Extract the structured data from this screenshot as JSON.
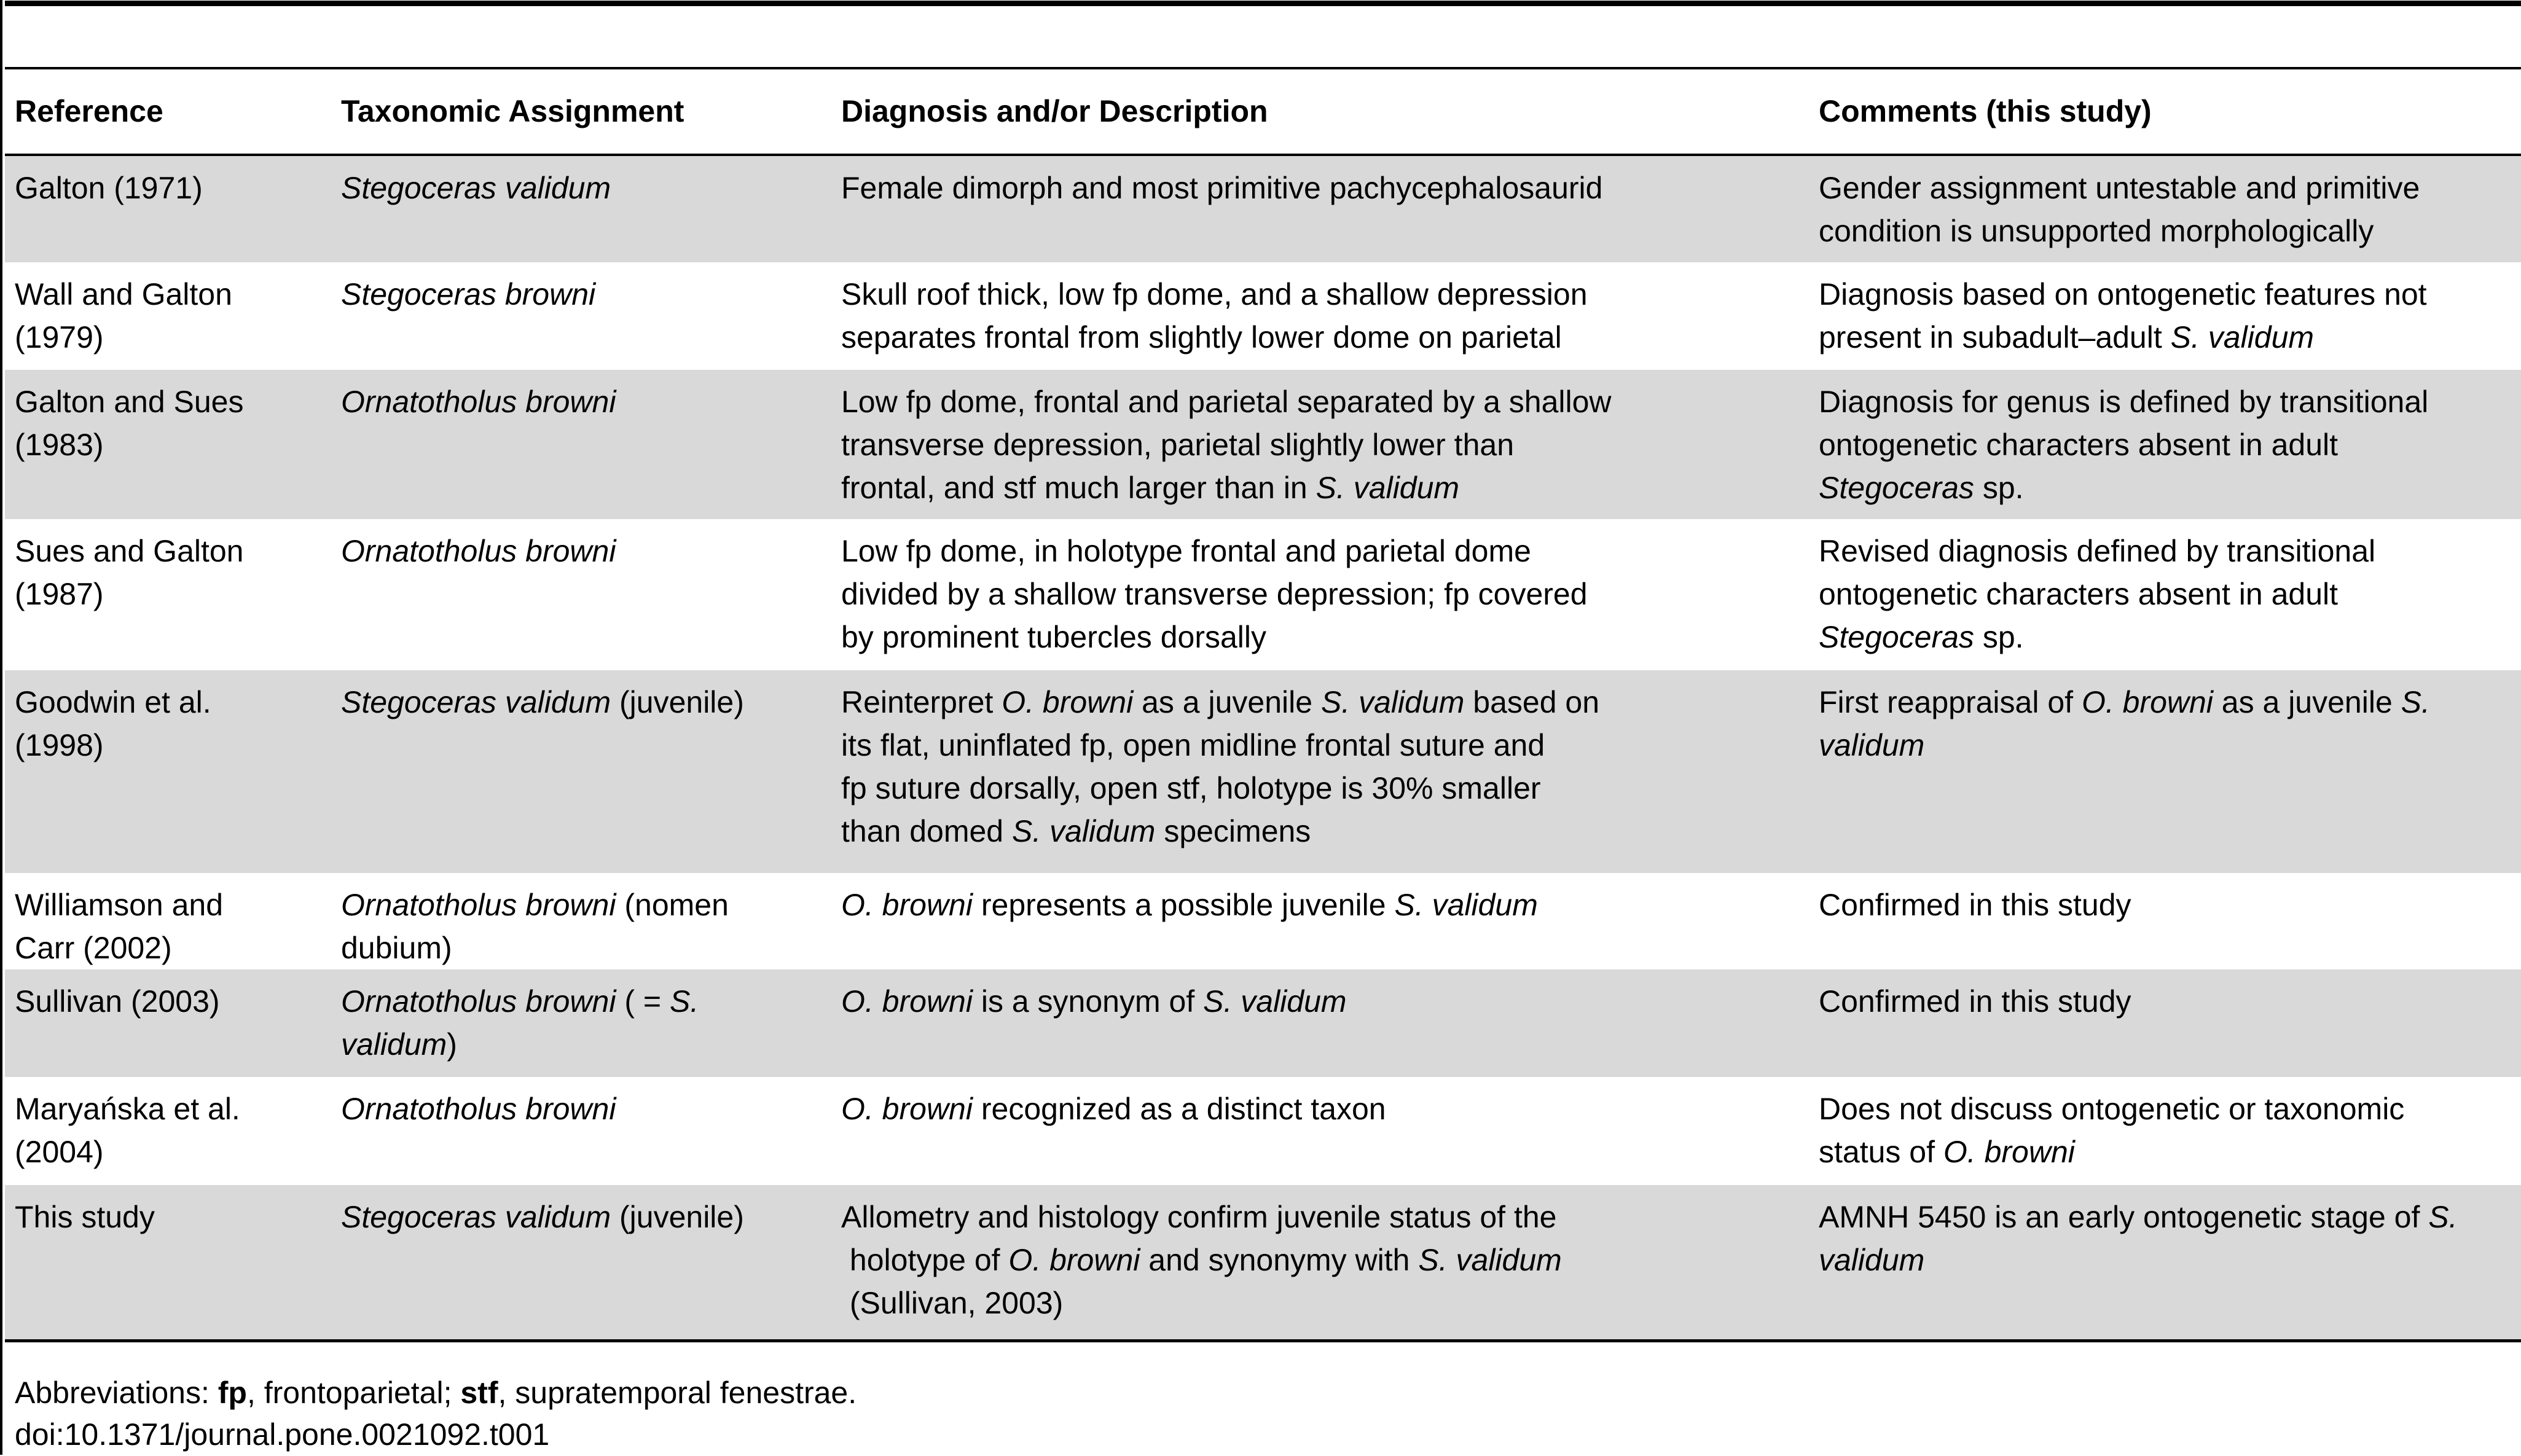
{
  "table": {
    "headers": [
      "Reference",
      "Taxonomic Assignment",
      "Diagnosis and/or Description",
      "Comments (this study)"
    ],
    "shade_color": "#d9d9d9",
    "rows": [
      {
        "cells": [
          {
            "lines": [
              [
                {
                  "t": "Galton (1971)"
                }
              ]
            ]
          },
          {
            "lines": [
              [
                {
                  "t": "Stegoceras validum",
                  "i": true
                }
              ]
            ]
          },
          {
            "lines": [
              [
                {
                  "t": "Female dimorph and most primitive pachycephalosaurid"
                }
              ]
            ]
          },
          {
            "lines": [
              [
                {
                  "t": "Gender assignment untestable and primitive"
                }
              ],
              [
                {
                  "t": "condition is unsupported morphologically"
                }
              ]
            ]
          }
        ]
      },
      {
        "cells": [
          {
            "lines": [
              [
                {
                  "t": "Wall and Galton"
                }
              ],
              [
                {
                  "t": "(1979)"
                }
              ]
            ]
          },
          {
            "lines": [
              [
                {
                  "t": "Stegoceras browni",
                  "i": true
                }
              ]
            ]
          },
          {
            "lines": [
              [
                {
                  "t": "Skull roof thick, low fp dome, and a shallow depression"
                }
              ],
              [
                {
                  "t": "separates frontal from slightly lower dome on parietal"
                }
              ]
            ]
          },
          {
            "lines": [
              [
                {
                  "t": "Diagnosis based on ontogenetic features not"
                }
              ],
              [
                {
                  "t": "present in subadult–adult "
                },
                {
                  "t": "S. validum",
                  "i": true
                }
              ]
            ]
          }
        ]
      },
      {
        "cells": [
          {
            "lines": [
              [
                {
                  "t": "Galton and Sues"
                }
              ],
              [
                {
                  "t": "(1983)"
                }
              ]
            ]
          },
          {
            "lines": [
              [
                {
                  "t": "Ornatotholus browni",
                  "i": true
                }
              ]
            ]
          },
          {
            "lines": [
              [
                {
                  "t": "Low fp dome, frontal and parietal separated by a shallow"
                }
              ],
              [
                {
                  "t": "transverse depression, parietal slightly lower than"
                }
              ],
              [
                {
                  "t": "frontal, and stf much larger than in "
                },
                {
                  "t": "S. validum",
                  "i": true
                }
              ]
            ]
          },
          {
            "lines": [
              [
                {
                  "t": "Diagnosis for genus is defined by transitional"
                }
              ],
              [
                {
                  "t": "ontogenetic characters absent in adult"
                }
              ],
              [
                {
                  "t": "Stegoceras",
                  "i": true
                },
                {
                  "t": " sp."
                }
              ]
            ]
          }
        ]
      },
      {
        "cells": [
          {
            "lines": [
              [
                {
                  "t": "Sues and Galton"
                }
              ],
              [
                {
                  "t": "(1987)"
                }
              ]
            ]
          },
          {
            "lines": [
              [
                {
                  "t": "Ornatotholus browni",
                  "i": true
                }
              ]
            ]
          },
          {
            "lines": [
              [
                {
                  "t": "Low fp dome, in holotype frontal and parietal dome"
                }
              ],
              [
                {
                  "t": "divided by a shallow transverse depression; fp covered"
                }
              ],
              [
                {
                  "t": "by prominent tubercles dorsally"
                }
              ]
            ]
          },
          {
            "lines": [
              [
                {
                  "t": "Revised diagnosis defined by transitional"
                }
              ],
              [
                {
                  "t": "ontogenetic characters absent in adult"
                }
              ],
              [
                {
                  "t": "Stegoceras",
                  "i": true
                },
                {
                  "t": " sp."
                }
              ]
            ]
          }
        ]
      },
      {
        "cells": [
          {
            "lines": [
              [
                {
                  "t": "Goodwin et al."
                }
              ],
              [
                {
                  "t": "(1998)"
                }
              ]
            ]
          },
          {
            "lines": [
              [
                {
                  "t": "Stegoceras validum",
                  "i": true
                },
                {
                  "t": " (juvenile)"
                }
              ]
            ]
          },
          {
            "lines": [
              [
                {
                  "t": "Reinterpret "
                },
                {
                  "t": "O. browni",
                  "i": true
                },
                {
                  "t": " as a juvenile "
                },
                {
                  "t": "S. validum",
                  "i": true
                },
                {
                  "t": " based on"
                }
              ],
              [
                {
                  "t": "its flat, uninflated fp, open midline frontal suture and"
                }
              ],
              [
                {
                  "t": "fp suture dorsally, open stf, holotype is 30% smaller"
                }
              ],
              [
                {
                  "t": "than domed "
                },
                {
                  "t": "S. validum",
                  "i": true
                },
                {
                  "t": " specimens"
                }
              ]
            ]
          },
          {
            "lines": [
              [
                {
                  "t": "First reappraisal of "
                },
                {
                  "t": "O. browni",
                  "i": true
                },
                {
                  "t": " as a juvenile "
                },
                {
                  "t": "S.",
                  "i": true
                }
              ],
              [
                {
                  "t": "validum",
                  "i": true
                }
              ]
            ]
          }
        ]
      },
      {
        "cells": [
          {
            "lines": [
              [
                {
                  "t": "Williamson and"
                }
              ],
              [
                {
                  "t": "Carr (2002)"
                }
              ]
            ]
          },
          {
            "lines": [
              [
                {
                  "t": "Ornatotholus browni",
                  "i": true
                },
                {
                  "t": " (nomen"
                }
              ],
              [
                {
                  "t": "dubium)"
                }
              ]
            ]
          },
          {
            "lines": [
              [
                {
                  "t": "O. browni",
                  "i": true
                },
                {
                  "t": " represents a possible juvenile "
                },
                {
                  "t": "S. validum",
                  "i": true
                }
              ]
            ]
          },
          {
            "lines": [
              [
                {
                  "t": "Confirmed in this study"
                }
              ]
            ]
          }
        ]
      },
      {
        "cells": [
          {
            "lines": [
              [
                {
                  "t": "Sullivan (2003)"
                }
              ]
            ]
          },
          {
            "lines": [
              [
                {
                  "t": "Ornatotholus browni",
                  "i": true
                },
                {
                  "t": " ( = "
                },
                {
                  "t": "S.",
                  "i": true
                }
              ],
              [
                {
                  "t": "validum",
                  "i": true
                },
                {
                  "t": ")"
                }
              ]
            ]
          },
          {
            "lines": [
              [
                {
                  "t": "O. browni",
                  "i": true
                },
                {
                  "t": " is a synonym of "
                },
                {
                  "t": "S. validum",
                  "i": true
                }
              ]
            ]
          },
          {
            "lines": [
              [
                {
                  "t": "Confirmed in this study"
                }
              ]
            ]
          }
        ]
      },
      {
        "cells": [
          {
            "lines": [
              [
                {
                  "t": "Maryańska et al."
                }
              ],
              [
                {
                  "t": "(2004)"
                }
              ]
            ]
          },
          {
            "lines": [
              [
                {
                  "t": "Ornatotholus browni",
                  "i": true
                }
              ]
            ]
          },
          {
            "lines": [
              [
                {
                  "t": "O. browni",
                  "i": true
                },
                {
                  "t": " recognized as a distinct taxon"
                }
              ]
            ]
          },
          {
            "lines": [
              [
                {
                  "t": "Does not discuss ontogenetic or taxonomic"
                }
              ],
              [
                {
                  "t": "status of "
                },
                {
                  "t": "O. browni",
                  "i": true
                }
              ]
            ]
          }
        ]
      },
      {
        "cells": [
          {
            "lines": [
              [
                {
                  "t": "This study"
                }
              ]
            ]
          },
          {
            "lines": [
              [
                {
                  "t": "Stegoceras validum",
                  "i": true
                },
                {
                  "t": " (juvenile)"
                }
              ]
            ]
          },
          {
            "lines": [
              [
                {
                  "t": "Allometry and histology confirm juvenile status of the"
                }
              ],
              [
                {
                  "t": " holotype of "
                },
                {
                  "t": "O. browni",
                  "i": true
                },
                {
                  "t": " and synonymy with "
                },
                {
                  "t": "S. validum",
                  "i": true
                }
              ],
              [
                {
                  "t": " (Sullivan, 2003)"
                }
              ]
            ]
          },
          {
            "lines": [
              [
                {
                  "t": "AMNH 5450 is an early ontogenetic stage of "
                },
                {
                  "t": "S.",
                  "i": true
                }
              ],
              [
                {
                  "t": "validum",
                  "i": true
                }
              ]
            ]
          }
        ]
      }
    ]
  },
  "footer": {
    "abbrev_prefix": "Abbreviations: ",
    "abbrev_1_term": "fp",
    "abbrev_1_def": ", frontoparietal; ",
    "abbrev_2_term": "stf",
    "abbrev_2_def": ", supratemporal fenestrae.",
    "doi": "doi:10.1371/journal.pone.0021092.t001"
  }
}
